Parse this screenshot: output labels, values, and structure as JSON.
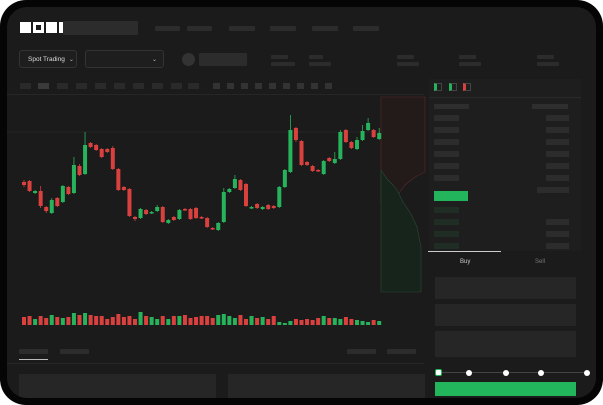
{
  "header": {
    "logo": "OKX"
  },
  "toolbar": {
    "market_dropdown": "Spot Trading",
    "chevron": "chevron-down-icon"
  },
  "order_panel": {
    "tabs": [
      "Buy",
      "Sell"
    ],
    "active_tab": "Buy",
    "slider_percent": 0
  },
  "colors": {
    "up": "#26b35c",
    "down": "#d9413f",
    "accent_button": "#22b55c"
  },
  "chart_data": {
    "type": "candlestick",
    "candles": [
      [
        68,
        65,
        70,
        63
      ],
      [
        69,
        59,
        70,
        58
      ],
      [
        57,
        59,
        60,
        56
      ],
      [
        59,
        44,
        64,
        42
      ],
      [
        43,
        39,
        44,
        37
      ],
      [
        37,
        50,
        52,
        36
      ],
      [
        52,
        44,
        53,
        43
      ],
      [
        48,
        64,
        65,
        47
      ],
      [
        63,
        56,
        64,
        55
      ],
      [
        57,
        85,
        93,
        56
      ],
      [
        84,
        75,
        86,
        74
      ],
      [
        76,
        105,
        118,
        75
      ],
      [
        107,
        103,
        108,
        102
      ],
      [
        105,
        100,
        106,
        99
      ],
      [
        101,
        93,
        102,
        92
      ],
      [
        101,
        98,
        102,
        97
      ],
      [
        102,
        81,
        104,
        80
      ],
      [
        81,
        60,
        82,
        59
      ],
      [
        63,
        60,
        64,
        59
      ],
      [
        61,
        34,
        62,
        33
      ],
      [
        33,
        31,
        34,
        29
      ],
      [
        32,
        41,
        42,
        31
      ],
      [
        40,
        36,
        41,
        35
      ],
      [
        37,
        38,
        39,
        36
      ],
      [
        39,
        43,
        45,
        38
      ],
      [
        43,
        28,
        44,
        27
      ],
      [
        27,
        30,
        31,
        26
      ],
      [
        33,
        30,
        34,
        29
      ],
      [
        31,
        40,
        41,
        30
      ],
      [
        41,
        40,
        42,
        39
      ],
      [
        41,
        31,
        42,
        30
      ],
      [
        42,
        32,
        43,
        31
      ],
      [
        33,
        32,
        34,
        31
      ],
      [
        32,
        23,
        33,
        22
      ],
      [
        22,
        21,
        23,
        20
      ],
      [
        20,
        27,
        28,
        19
      ],
      [
        28,
        58,
        62,
        27
      ],
      [
        58,
        61,
        62,
        57
      ],
      [
        62,
        71,
        75,
        61
      ],
      [
        70,
        60,
        71,
        59
      ],
      [
        66,
        44,
        67,
        43
      ],
      [
        42,
        43,
        44,
        41
      ],
      [
        46,
        42,
        47,
        41
      ],
      [
        41,
        43,
        44,
        40
      ],
      [
        45,
        41,
        46,
        40
      ],
      [
        44,
        42,
        45,
        41
      ],
      [
        43,
        63,
        64,
        42
      ],
      [
        63,
        80,
        81,
        62
      ],
      [
        78,
        120,
        135,
        77
      ],
      [
        122,
        110,
        123,
        108
      ],
      [
        109,
        85,
        110,
        84
      ],
      [
        88,
        85,
        89,
        84
      ],
      [
        84,
        79,
        85,
        78
      ],
      [
        80,
        79,
        81,
        78
      ],
      [
        76,
        89,
        90,
        75
      ],
      [
        92,
        89,
        93,
        88
      ],
      [
        87,
        91,
        98,
        86
      ],
      [
        91,
        118,
        120,
        90
      ],
      [
        120,
        108,
        121,
        107
      ],
      [
        108,
        102,
        109,
        101
      ],
      [
        101,
        110,
        113,
        100
      ],
      [
        110,
        119,
        125,
        109
      ],
      [
        120,
        127,
        132,
        119
      ],
      [
        120,
        113,
        121,
        112
      ],
      [
        111,
        117,
        122,
        110
      ]
    ],
    "volume": [
      8,
      9,
      6,
      9,
      7,
      10,
      8,
      7,
      8,
      12,
      10,
      12,
      10,
      9,
      9,
      6,
      8,
      11,
      8,
      9,
      6,
      13,
      9,
      8,
      6,
      9,
      6,
      9,
      9,
      10,
      7,
      8,
      9,
      9,
      7,
      10,
      11,
      9,
      7,
      10,
      6,
      9,
      7,
      8,
      6,
      9,
      3,
      2,
      4,
      6,
      5,
      6,
      5,
      7,
      9,
      7,
      7,
      6,
      8,
      6,
      5,
      4,
      3,
      5,
      4
    ]
  }
}
